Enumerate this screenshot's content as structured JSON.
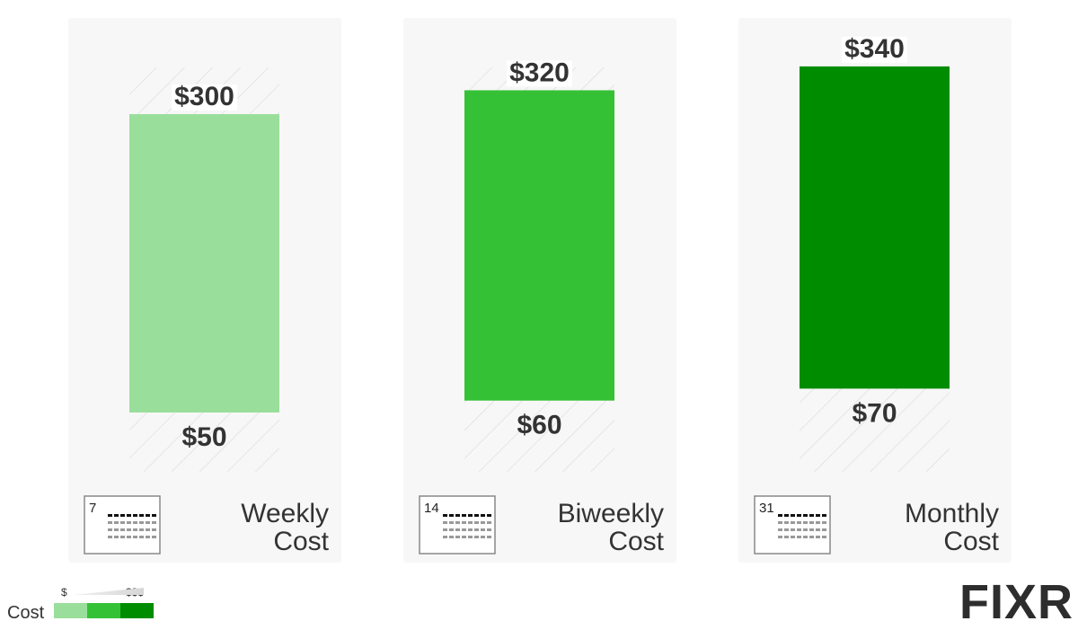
{
  "chart_data": {
    "type": "floating-bar",
    "categories": [
      "Weekly Cost",
      "Biweekly Cost",
      "Monthly Cost"
    ],
    "calendar_days": [
      "7",
      "14",
      "31"
    ],
    "colors": [
      "#9ade9b",
      "#35c135",
      "#008c00"
    ],
    "series": [
      {
        "values": [
          50,
          60,
          70
        ],
        "value_labels": [
          "$50",
          "$60",
          "$70"
        ]
      },
      {
        "values": [
          300,
          320,
          340
        ],
        "value_labels": [
          "$300",
          "$320",
          "$340"
        ]
      }
    ],
    "legend": {
      "title": "Cost",
      "low": "$",
      "high": "$$$"
    },
    "logo": "FIXR"
  }
}
